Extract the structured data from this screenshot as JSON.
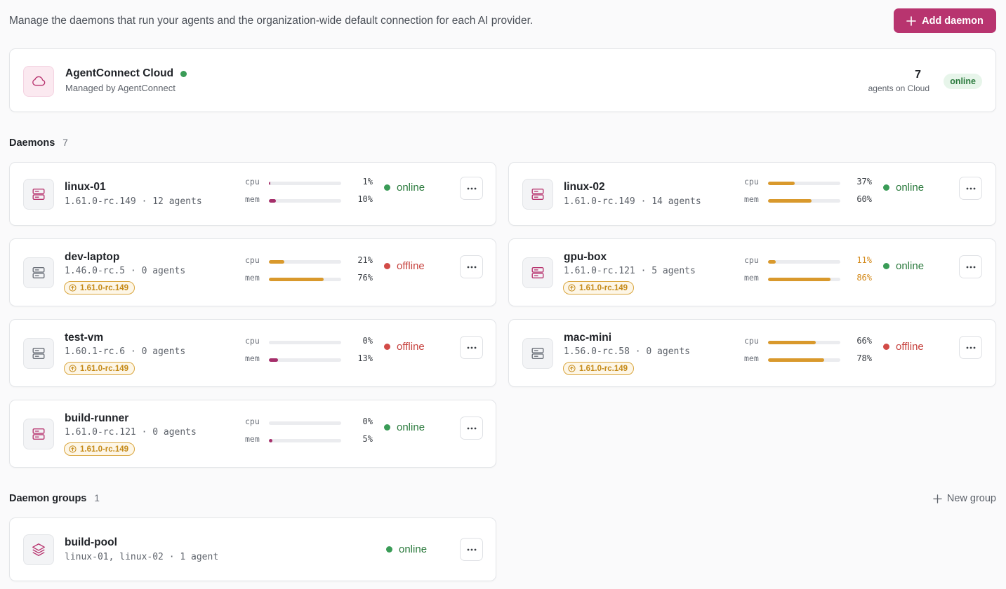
{
  "header": {
    "description": "Manage the daemons that run your agents and the organization-wide default connection for each AI provider.",
    "add_button_label": "Add daemon",
    "add_button_icon": "plus-icon"
  },
  "colors": {
    "accent": "#b8346f",
    "online": "#3a9c57",
    "offline": "#d24b47",
    "warning": "#d9992c",
    "mem_bar_low": "#a52e6a"
  },
  "cloud": {
    "name": "AgentConnect Cloud",
    "managed_by": "Managed by AgentConnect",
    "agent_count": "7",
    "agent_count_label": "agents on Cloud",
    "status": "online",
    "icon": "cloud-icon"
  },
  "daemons_section": {
    "title": "Daemons",
    "count": "7"
  },
  "daemons": [
    {
      "name": "linux-01",
      "version_line": "1.61.0-rc.149 · 12 agents",
      "upgrade": "",
      "cpu_label": "cpu",
      "cpu": "1%",
      "cpu_frac": 0.01,
      "mem_label": "mem",
      "mem": "10%",
      "mem_frac": 0.1,
      "status": "online"
    },
    {
      "name": "linux-02",
      "version_line": "1.61.0-rc.149 · 14 agents",
      "upgrade": "",
      "cpu_label": "cpu",
      "cpu": "37%",
      "cpu_frac": 0.37,
      "mem_label": "mem",
      "mem": "60%",
      "mem_frac": 0.6,
      "status": "online"
    },
    {
      "name": "dev-laptop",
      "version_line": "1.46.0-rc.5 · 0 agents",
      "upgrade": "1.61.0-rc.149",
      "cpu_label": "cpu",
      "cpu": "21%",
      "cpu_frac": 0.21,
      "mem_label": "mem",
      "mem": "76%",
      "mem_frac": 0.76,
      "status": "offline"
    },
    {
      "name": "gpu-box",
      "version_line": "1.61.0-rc.121 · 5 agents",
      "upgrade": "1.61.0-rc.149",
      "cpu_label": "cpu",
      "cpu": "11%",
      "cpu_frac": 0.11,
      "mem_label": "mem",
      "mem": "86%",
      "mem_frac": 0.86,
      "status": "online",
      "values_warn": true
    },
    {
      "name": "test-vm",
      "version_line": "1.60.1-rc.6 · 0 agents",
      "upgrade": "1.61.0-rc.149",
      "cpu_label": "cpu",
      "cpu": "0%",
      "cpu_frac": 0.0,
      "mem_label": "mem",
      "mem": "13%",
      "mem_frac": 0.13,
      "status": "offline"
    },
    {
      "name": "mac-mini",
      "version_line": "1.56.0-rc.58 · 0 agents",
      "upgrade": "1.61.0-rc.149",
      "cpu_label": "cpu",
      "cpu": "66%",
      "cpu_frac": 0.66,
      "mem_label": "mem",
      "mem": "78%",
      "mem_frac": 0.78,
      "status": "offline"
    },
    {
      "name": "build-runner",
      "version_line": "1.61.0-rc.121 · 0 agents",
      "upgrade": "1.61.0-rc.149",
      "cpu_label": "cpu",
      "cpu": "0%",
      "cpu_frac": 0.0,
      "mem_label": "mem",
      "mem": "5%",
      "mem_frac": 0.05,
      "status": "online"
    }
  ],
  "groups_section": {
    "title": "Daemon groups",
    "count": "1",
    "new_group_label": "New group"
  },
  "groups": [
    {
      "name": "build-pool",
      "members_line": "linux-01, linux-02 · 1 agent",
      "status": "online",
      "icon": "layers-icon"
    }
  ]
}
